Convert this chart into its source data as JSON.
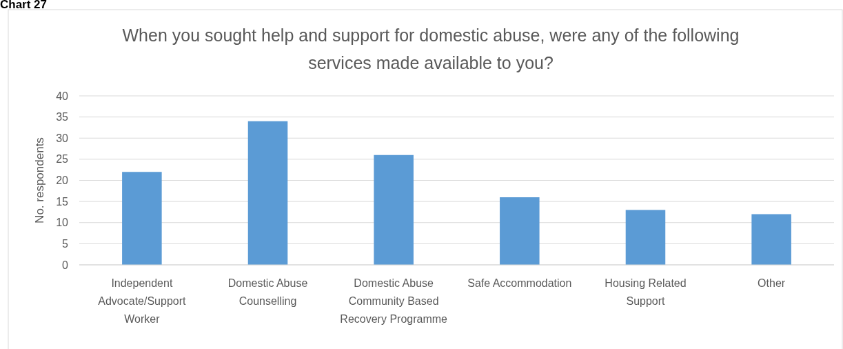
{
  "chart_data": {
    "type": "bar",
    "title": "When you sought help and support for domestic abuse, were any of the following services made available to you?",
    "ylabel": "No. respondents",
    "annotations": [
      "Chart 27"
    ],
    "categories": [
      "Independent Advocate/Support Worker",
      "Domestic Abuse Counselling",
      "Domestic Abuse Community Based Recovery Programme",
      "Safe Accommodation",
      "Housing Related Support",
      "Other"
    ],
    "values": [
      22,
      34,
      26,
      16,
      13,
      12
    ],
    "color": "#5b9bd5",
    "ylim": [
      0,
      40
    ],
    "yticks": [
      0,
      5,
      10,
      15,
      20,
      25,
      30,
      35,
      40
    ],
    "grid": "y"
  }
}
